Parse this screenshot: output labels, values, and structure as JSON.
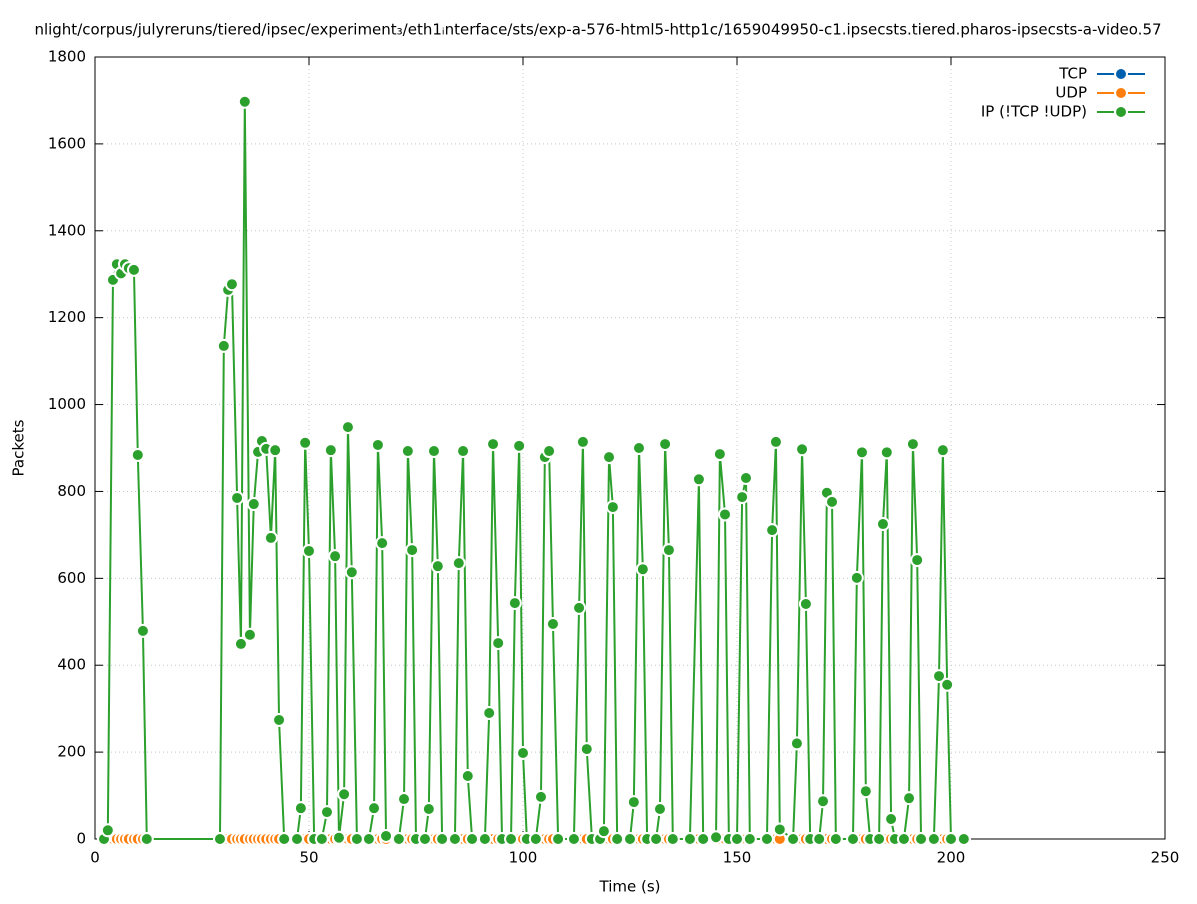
{
  "chart_data": {
    "type": "line",
    "title": "nlight/corpus/julyreruns/tiered/ipsec/experiment₃/eth1ᵢnterface/sts/exp-a-576-html5-http1c/1659049950-c1.ipsecsts.tiered.pharos-ipsecsts-a-video.57",
    "x_label": "Time (s)",
    "y_label": "Packets",
    "xlim": [
      0,
      250
    ],
    "xticks": [
      0,
      50,
      100,
      150,
      200,
      250
    ],
    "ylim": [
      0,
      1800
    ],
    "yticks": [
      0,
      200,
      400,
      600,
      800,
      1000,
      1200,
      1400,
      1600,
      1800
    ],
    "grid": true,
    "legend": "top-right",
    "x": [
      2.1,
      3.0,
      4.2,
      5.1,
      6.1,
      7.0,
      7.9,
      9.1,
      10.0,
      11.2,
      12.1,
      29.2,
      30.1,
      31.1,
      32.0,
      33.2,
      34.1,
      35.0,
      36.2,
      37.1,
      38.1,
      39.0,
      40.0,
      41.1,
      42.1,
      43.0,
      44.2,
      47.2,
      48.1,
      49.1,
      50.0,
      51.2,
      53.0,
      54.2,
      55.1,
      56.1,
      57.0,
      58.2,
      59.1,
      60.0,
      61.2,
      64.0,
      65.2,
      66.1,
      67.1,
      68.0,
      71.0,
      72.2,
      73.1,
      74.1,
      75.0,
      77.1,
      78.0,
      79.2,
      80.1,
      81.1,
      84.1,
      85.0,
      86.0,
      87.1,
      88.1,
      91.1,
      92.1,
      93.0,
      94.2,
      95.1,
      97.2,
      98.1,
      99.1,
      100.0,
      100.9,
      103.0,
      104.2,
      105.1,
      106.1,
      107.0,
      108.2,
      111.9,
      113.1,
      114.0,
      114.9,
      116.1,
      118.0,
      118.9,
      120.1,
      121.0,
      122.0,
      125.0,
      125.9,
      127.1,
      128.0,
      129.0,
      131.1,
      132.0,
      133.2,
      134.1,
      135.0,
      139.0,
      141.1,
      142.1,
      145.1,
      146.0,
      147.2,
      148.1,
      150.0,
      151.2,
      152.1,
      153.0,
      157.0,
      158.2,
      159.1,
      160.0,
      163.1,
      164.0,
      165.2,
      166.1,
      167.1,
      169.2,
      170.1,
      171.0,
      172.2,
      173.1,
      177.1,
      178.0,
      179.2,
      180.1,
      181.1,
      183.2,
      184.1,
      185.0,
      186.0,
      186.9,
      189.0,
      190.2,
      191.1,
      192.1,
      193.0,
      196.0,
      197.2,
      198.1,
      199.1,
      200.0,
      203.0
    ],
    "series": [
      {
        "name": "TCP",
        "color": "#0060ad",
        "values": [
          0,
          0,
          0,
          0,
          0,
          0,
          0,
          0,
          0,
          0,
          0,
          0,
          0,
          0,
          0,
          0,
          0,
          0,
          0,
          0,
          0,
          0,
          0,
          0,
          0,
          0,
          0,
          0,
          0,
          0,
          0,
          0,
          0,
          0,
          0,
          0,
          0,
          0,
          0,
          0,
          0,
          0,
          0,
          0,
          0,
          0,
          0,
          0,
          0,
          0,
          0,
          0,
          0,
          0,
          0,
          0,
          0,
          0,
          0,
          0,
          0,
          0,
          0,
          0,
          0,
          0,
          0,
          0,
          0,
          0,
          0,
          0,
          0,
          0,
          0,
          0,
          0,
          0,
          0,
          0,
          0,
          0,
          0,
          0,
          0,
          0,
          0,
          0,
          0,
          0,
          0,
          0,
          0,
          0,
          0,
          0,
          0,
          0,
          0,
          0,
          0,
          0,
          0,
          0,
          0,
          0,
          0,
          0,
          0,
          0,
          0,
          0,
          0,
          0,
          0,
          0,
          0,
          0,
          0,
          0,
          0,
          0,
          0,
          0,
          0,
          0,
          0,
          0,
          0,
          0,
          0,
          0,
          0,
          0,
          0,
          0,
          0,
          0,
          0,
          0,
          0,
          0,
          0
        ]
      },
      {
        "name": "UDP",
        "color": "#ff7f0e",
        "values": [
          0,
          0,
          0,
          0,
          0,
          0,
          0,
          0,
          0,
          0,
          0,
          0,
          0,
          0,
          0,
          0,
          0,
          0,
          0,
          0,
          0,
          0,
          0,
          0,
          0,
          0,
          0,
          0,
          0,
          0,
          0,
          0,
          0,
          0,
          0,
          0,
          0,
          0,
          0,
          0,
          0,
          0,
          0,
          0,
          0,
          0,
          0,
          0,
          0,
          0,
          0,
          0,
          0,
          0,
          0,
          0,
          0,
          0,
          0,
          0,
          0,
          0,
          0,
          0,
          0,
          0,
          0,
          0,
          0,
          0,
          0,
          0,
          0,
          0,
          0,
          0,
          0,
          0,
          0,
          0,
          0,
          0,
          0,
          0,
          0,
          0,
          0,
          0,
          0,
          0,
          0,
          0,
          0,
          0,
          0,
          0,
          0,
          0,
          0,
          0,
          0,
          0,
          0,
          0,
          0,
          0,
          0,
          0,
          0,
          0,
          0,
          0,
          0,
          0,
          0,
          0,
          0,
          0,
          0,
          0,
          0,
          0,
          0,
          0,
          0,
          0,
          0,
          0,
          0,
          0,
          0,
          0,
          0,
          0,
          0,
          0,
          0,
          0,
          0,
          0,
          0,
          0,
          0
        ]
      },
      {
        "name": "IP (!TCP  !UDP)",
        "color": "#2ca02c",
        "values": [
          0,
          20,
          1287,
          1323,
          1302,
          1323,
          1314,
          1310,
          884,
          479,
          0,
          0,
          1135,
          1264,
          1277,
          785,
          449,
          1697,
          470,
          771,
          891,
          916,
          898,
          693,
          895,
          274,
          0,
          0,
          71,
          912,
          663,
          0,
          0,
          62,
          895,
          651,
          3,
          103,
          948,
          614,
          0,
          0,
          71,
          907,
          681,
          7,
          0,
          92,
          893,
          665,
          0,
          0,
          69,
          893,
          628,
          0,
          0,
          635,
          893,
          145,
          0,
          0,
          290,
          909,
          451,
          0,
          0,
          543,
          905,
          198,
          0,
          0,
          97,
          879,
          893,
          495,
          0,
          0,
          532,
          914,
          207,
          0,
          0,
          18,
          879,
          764,
          0,
          0,
          85,
          900,
          621,
          0,
          0,
          69,
          909,
          665,
          0,
          0,
          828,
          0,
          4,
          886,
          747,
          0,
          0,
          787,
          831,
          0,
          0,
          711,
          914,
          22,
          0,
          220,
          897,
          541,
          0,
          0,
          87,
          797,
          776,
          0,
          0,
          601,
          890,
          110,
          0,
          0,
          725,
          890,
          46,
          0,
          0,
          94,
          909,
          642,
          0,
          0,
          375,
          895,
          355,
          0,
          0
        ]
      }
    ]
  }
}
